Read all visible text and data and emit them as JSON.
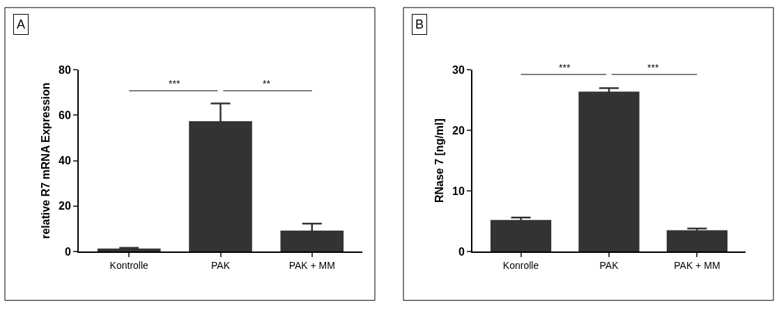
{
  "chart_data": [
    {
      "type": "bar",
      "title": "A",
      "ylabel": "relative R7 mRNA Expression",
      "categories": [
        "Kontrolle",
        "PAK",
        "PAK + MM"
      ],
      "values": [
        1.3,
        57.4,
        9.2
      ],
      "errors": [
        0.3,
        7.8,
        3.1
      ],
      "color": "#333333",
      "ylim": [
        0,
        80
      ],
      "yticks": [
        0,
        20,
        40,
        60,
        80
      ],
      "annotations": [
        "***",
        "**"
      ]
    },
    {
      "type": "bar",
      "title": "B",
      "ylabel": "RNase 7 [ng/ml]",
      "categories": [
        "Konrolle",
        "PAK",
        "PAK + MM"
      ],
      "values": [
        5.2,
        26.4,
        3.5
      ],
      "errors": [
        0.4,
        0.6,
        0.3
      ],
      "color": "#333333",
      "ylim": [
        0,
        30
      ],
      "yticks": [
        0,
        10,
        20,
        30
      ],
      "annotations": [
        "***",
        "***"
      ]
    }
  ]
}
